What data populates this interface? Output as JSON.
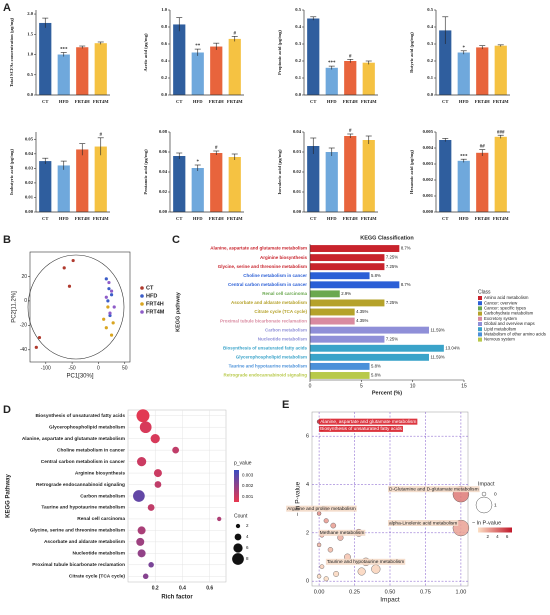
{
  "chart_data": [
    {
      "type": "bar",
      "panel": "A",
      "ylabel": "Total SCFAs concentration (μg/mg)",
      "categories": [
        "CT",
        "HFD",
        "FRT4H",
        "FRT4M"
      ],
      "values": [
        1.78,
        1.0,
        1.18,
        1.28
      ],
      "errors": [
        0.12,
        0.05,
        0.03,
        0.03
      ],
      "annotations": [
        null,
        "***",
        null,
        null
      ],
      "colors": [
        "#2f5e9e",
        "#6fa8dc",
        "#e8643c",
        "#f5c242"
      ],
      "ylim": [
        0,
        2.1
      ],
      "yticks": [
        {
          "value": 0,
          "label": "0.0"
        },
        0.5,
        {
          "value": 1,
          "label": "1.0"
        },
        1.5,
        {
          "value": 2,
          "label": "2.0"
        }
      ]
    },
    {
      "type": "bar",
      "ylabel": "Acetic acid (μg/mg)",
      "categories": [
        "CT",
        "HFD",
        "FRT4H",
        "FRT4M"
      ],
      "values": [
        0.83,
        0.5,
        0.57,
        0.66
      ],
      "errors": [
        0.08,
        0.04,
        0.04,
        0.03
      ],
      "annotations": [
        null,
        "**",
        null,
        "#"
      ],
      "colors": [
        "#2f5e9e",
        "#6fa8dc",
        "#e8643c",
        "#f5c242"
      ],
      "ylim": [
        0,
        1
      ],
      "yticks": [
        {
          "value": 0,
          "label": "0.0"
        },
        0.2,
        0.4,
        0.6,
        0.8,
        {
          "value": 1,
          "label": "1.0"
        }
      ]
    },
    {
      "type": "bar",
      "ylabel": "Propionic acid (μg/mg)",
      "categories": [
        "CT",
        "HFD",
        "FRT4H",
        "FRT4M"
      ],
      "values": [
        0.45,
        0.16,
        0.2,
        0.19
      ],
      "errors": [
        0.01,
        0.01,
        0.01,
        0.01
      ],
      "annotations": [
        null,
        "***",
        "#",
        null
      ],
      "colors": [
        "#2f5e9e",
        "#6fa8dc",
        "#e8643c",
        "#f5c242"
      ],
      "ylim": [
        0,
        0.5
      ],
      "yticks": [
        {
          "value": 0,
          "label": "0.0"
        },
        0.1,
        0.2,
        0.3,
        0.4,
        0.5
      ]
    },
    {
      "type": "bar",
      "ylabel": "Butyric acid (μg/mg)",
      "categories": [
        "CT",
        "HFD",
        "FRT4H",
        "FRT4M"
      ],
      "values": [
        0.38,
        0.25,
        0.28,
        0.29
      ],
      "errors": [
        0.08,
        0.01,
        0.01,
        0.005
      ],
      "annotations": [
        null,
        "*",
        null,
        null
      ],
      "colors": [
        "#2f5e9e",
        "#6fa8dc",
        "#e8643c",
        "#f5c242"
      ],
      "ylim": [
        0,
        0.5
      ],
      "yticks": [
        {
          "value": 0,
          "label": "0.0"
        },
        0.1,
        0.2,
        0.3,
        0.4,
        0.5
      ]
    },
    {
      "type": "bar",
      "ylabel": "Isobutyric acid (μg/mg)",
      "categories": [
        "CT",
        "HFD",
        "FRT4H",
        "FRT4M"
      ],
      "values": [
        0.035,
        0.032,
        0.043,
        0.045
      ],
      "errors": [
        0.002,
        0.003,
        0.004,
        0.006
      ],
      "annotations": [
        null,
        null,
        null,
        "#"
      ],
      "colors": [
        "#2f5e9e",
        "#6fa8dc",
        "#e8643c",
        "#f5c242"
      ],
      "ylim": [
        0,
        0.055
      ],
      "yticks": [
        {
          "value": 0,
          "label": "0.00"
        },
        0.01,
        0.02,
        0.03,
        0.04,
        0.05
      ]
    },
    {
      "type": "bar",
      "ylabel": "Pentanoic acid (μg/mg)",
      "categories": [
        "CT",
        "HFD",
        "FRT4H",
        "FRT4M"
      ],
      "values": [
        0.056,
        0.044,
        0.059,
        0.055
      ],
      "errors": [
        0.003,
        0.003,
        0.002,
        0.003
      ],
      "annotations": [
        null,
        "*",
        "#",
        null
      ],
      "colors": [
        "#2f5e9e",
        "#6fa8dc",
        "#e8643c",
        "#f5c242"
      ],
      "ylim": [
        0,
        0.08
      ],
      "yticks": [
        {
          "value": 0,
          "label": "0.00"
        },
        0.02,
        0.04,
        0.06,
        0.08
      ]
    },
    {
      "type": "bar",
      "ylabel": "Isovaleric acid (μg/mg)",
      "categories": [
        "CT",
        "HFD",
        "FRT4H",
        "FRT4M"
      ],
      "values": [
        0.033,
        0.03,
        0.038,
        0.036
      ],
      "errors": [
        0.004,
        0.002,
        0.001,
        0.002
      ],
      "annotations": [
        null,
        null,
        "#",
        null
      ],
      "colors": [
        "#2f5e9e",
        "#6fa8dc",
        "#e8643c",
        "#f5c242"
      ],
      "ylim": [
        0,
        0.04
      ],
      "yticks": [
        {
          "value": 0,
          "label": "0.00"
        },
        0.01,
        0.02,
        0.03,
        0.04
      ]
    },
    {
      "type": "bar",
      "ylabel": "Hexanoic acid (μg/mg)",
      "categories": [
        "CT",
        "HFD",
        "FRT4H",
        "FRT4M"
      ],
      "values": [
        0.0045,
        0.0032,
        0.0037,
        0.0047
      ],
      "errors": [
        0.0001,
        0.0001,
        0.0002,
        0.0001
      ],
      "annotations": [
        null,
        "***",
        "##",
        "###"
      ],
      "colors": [
        "#2f5e9e",
        "#6fa8dc",
        "#e8643c",
        "#f5c242"
      ],
      "ylim": [
        0,
        0.005
      ],
      "yticks": [
        {
          "value": 0,
          "label": "0.000"
        },
        0.001,
        0.002,
        0.003,
        0.004,
        0.005
      ]
    },
    {
      "type": "scatter",
      "panel": "B",
      "xlabel": "PC1[30%]",
      "ylabel": "PC2[11.2%]",
      "xlim": [
        -130,
        60
      ],
      "ylim": [
        -50,
        40
      ],
      "xticks": [
        -100,
        -50,
        0,
        50
      ],
      "yticks": [
        -40,
        -20,
        0,
        20
      ],
      "series": [
        {
          "name": "CT",
          "color": "#b03a2e",
          "x": [
            -112,
            -118,
            -65,
            -48,
            -55
          ],
          "y": [
            -30,
            -38,
            27,
            33,
            12
          ]
        },
        {
          "name": "HFD",
          "color": "#3c5dc8",
          "x": [
            15,
            20,
            25,
            18,
            22
          ],
          "y": [
            18,
            10,
            5,
            0,
            -12
          ]
        },
        {
          "name": "FRT4H",
          "color": "#d9a520",
          "x": [
            10,
            15,
            25,
            18,
            28
          ],
          "y": [
            -15,
            -22,
            -28,
            -5,
            -18
          ]
        },
        {
          "name": "FRT4M",
          "color": "#8e5cc8",
          "x": [
            20,
            25,
            30,
            22,
            15
          ],
          "y": [
            15,
            8,
            -5,
            -10,
            3
          ]
        }
      ]
    },
    {
      "type": "barh",
      "panel": "C",
      "title": "KEGG Classification",
      "xlabel": "Percent (%)",
      "ylabel": "KEGG pathway",
      "legend_title": "Class",
      "categories": [
        "Alanine, aspartate and glutamate metabolism",
        "Arginine biosynthesis",
        "Glycine, serine and threonine metabolism",
        "Choline metabolism in cancer",
        "Central carbon metabolism in cancer",
        "Renal cell carcinoma",
        "Ascorbate and aldarate metabolism",
        "Citrate cycle (TCA cycle)",
        "Proximal tubule bicarbonate reclamation",
        "Carbon metabolism",
        "Nucleotide metabolism",
        "Biosynthesis of unsaturated fatty acids",
        "Glycerophospholipid metabolism",
        "Taurine and hypotaurine metabolism",
        "Retrograde endocannabinoid signaling"
      ],
      "values": [
        8.7,
        7.25,
        7.25,
        5.8,
        8.7,
        2.9,
        7.25,
        4.35,
        4.35,
        11.59,
        7.25,
        13.04,
        11.59,
        5.8,
        5.8
      ],
      "value_labels": [
        "8.7%",
        "7.25%",
        "7.25%",
        "5.8%",
        "8.7%",
        "2.9%",
        "7.25%",
        "4.35%",
        "4.35%",
        "11.59%",
        "7.25%",
        "13.04%",
        "11.59%",
        "5.8%",
        "5.8%"
      ],
      "colors": [
        "#c8232c",
        "#c8232c",
        "#c8232c",
        "#2b5fd6",
        "#2b5fd6",
        "#6aa84f",
        "#b5a22a",
        "#b5a22a",
        "#d98aa0",
        "#8f8fd8",
        "#8f8fd8",
        "#3aa3c9",
        "#3aa3c9",
        "#4a90d9",
        "#b8c94a"
      ],
      "legend": [
        {
          "name": "Amino acid metabolism",
          "color": "#c8232c"
        },
        {
          "name": "Cancer: overview",
          "color": "#2b5fd6"
        },
        {
          "name": "Cancer: specific types",
          "color": "#6aa84f"
        },
        {
          "name": "Carbohydrate metabolism",
          "color": "#b5a22a"
        },
        {
          "name": "Excretory system",
          "color": "#d98aa0"
        },
        {
          "name": "Global and overview maps",
          "color": "#8f8fd8"
        },
        {
          "name": "Lipid metabolism",
          "color": "#3aa3c9"
        },
        {
          "name": "Metabolism of other amino acids",
          "color": "#4a90d9"
        },
        {
          "name": "Nervous system",
          "color": "#b8c94a"
        }
      ],
      "xlim": [
        0,
        15
      ],
      "xticks": [
        0,
        5,
        10,
        15
      ]
    },
    {
      "type": "dotplot",
      "panel": "D",
      "xlabel": "Rich factor",
      "ylabel": "KEGG Pathway",
      "color_title": "p_value",
      "size_title": "Count",
      "categories": [
        "Biosynthesis of unsaturated fatty acids",
        "Glycerophospholipid metabolism",
        "Alanine, aspartate and glutamate metabolism",
        "Choline metabolism in cancer",
        "Central carbon metabolism in cancer",
        "Arginine biosynthesis",
        "Retrograde endocannabinoid signaling",
        "Carbon metabolism",
        "Taurine and hypotaurine metabolism",
        "Renal cell carcinoma",
        "Glycine, serine and threonine metabolism",
        "Ascorbate and aldarate metabolism",
        "Nucleotide metabolism",
        "Proximal tubule bicarbonate reclamation",
        "Citrate cycle (TCA cycle)"
      ],
      "values": [
        0.11,
        0.13,
        0.2,
        0.35,
        0.1,
        0.22,
        0.22,
        0.08,
        0.17,
        0.67,
        0.1,
        0.09,
        0.1,
        0.17,
        0.13
      ],
      "counts": [
        9,
        8,
        6,
        4,
        6,
        5,
        4,
        8,
        4,
        2,
        5,
        5,
        5,
        3,
        3
      ],
      "p_values": [
        0.0006,
        0.0008,
        0.0008,
        0.0012,
        0.001,
        0.001,
        0.0012,
        0.0028,
        0.0012,
        0.0015,
        0.0016,
        0.0018,
        0.002,
        0.0024,
        0.0022
      ],
      "xlim": [
        0,
        0.72
      ],
      "xticks": [
        0.2,
        0.4,
        0.6
      ],
      "clim": [
        0.0005,
        0.0035
      ],
      "color_ticks": [
        0.003,
        0.002,
        0.001
      ],
      "size_ticks": [
        2,
        4,
        6,
        8
      ],
      "color_low": "#e8384f",
      "color_high": "#3b4cc0",
      "grid": true
    },
    {
      "type": "bubble",
      "panel": "E",
      "xlabel": "Impact",
      "ylabel": "− ln P-value",
      "size_title": "Impact",
      "color_title": "− ln P-value",
      "x": [
        0.0,
        0.02,
        1.0,
        0.05,
        1.0,
        0.28,
        0.33,
        0.0,
        0.05,
        0.1,
        0.15,
        0.0,
        0.08,
        0.2,
        0.02,
        0.3,
        0.12,
        0.0,
        0.05,
        0.4,
        0.02
      ],
      "y": [
        6.6,
        6.3,
        3.6,
        3.0,
        2.2,
        2.0,
        0.8,
        2.8,
        2.5,
        2.3,
        1.8,
        1.5,
        1.3,
        1.0,
        0.6,
        0.4,
        0.3,
        0.2,
        0.1,
        0.5,
        1.9
      ],
      "labels": [
        "Alanine, aspartate and glutamate metabolism",
        "Biosynthesis of unsaturated fatty acids",
        "D-Glutamine and D-glutamate metabolism",
        "Arginine and proline metabolism",
        "alpha-Linolenic acid metabolism",
        "Methane metabolism",
        "Taurine and hypotaurine metabolism",
        null,
        null,
        null,
        null,
        null,
        null,
        null,
        null,
        null,
        null,
        null,
        null,
        null,
        null
      ],
      "xlim": [
        -0.05,
        1.05
      ],
      "ylim": [
        -0.2,
        7
      ],
      "xticks": [
        {
          "value": 0,
          "label": "0.00"
        },
        0.25,
        {
          "value": 0.5,
          "label": "0.50"
        },
        0.75,
        {
          "value": 1,
          "label": "1.00"
        }
      ],
      "yticks": [
        0,
        2,
        4,
        6
      ],
      "clim": [
        0,
        7
      ],
      "color_ticks": [
        2,
        4,
        6
      ],
      "size_ticks": [
        0,
        1
      ],
      "color_low": "#fde0c5",
      "color_high": "#c0182a",
      "grid": true
    }
  ]
}
